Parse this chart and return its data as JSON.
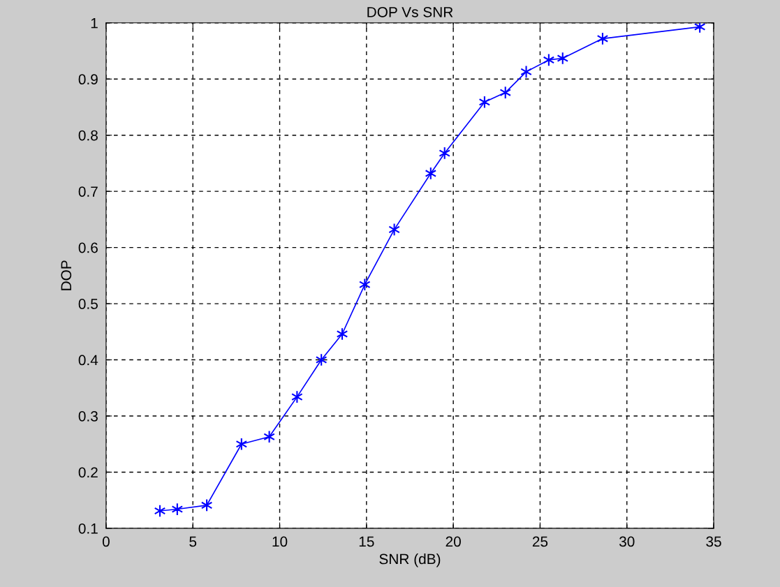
{
  "chart_data": {
    "type": "line",
    "title": "DOP Vs SNR",
    "xlabel": "SNR (dB)",
    "ylabel": "DOP",
    "x": [
      3.1,
      4.1,
      5.8,
      7.8,
      9.4,
      11.0,
      12.4,
      13.6,
      14.9,
      16.6,
      18.7,
      19.5,
      21.8,
      23.0,
      24.2,
      25.5,
      26.3,
      28.6,
      34.2
    ],
    "series": [
      {
        "color": "#0000ff",
        "values": [
          0.131,
          0.134,
          0.141,
          0.25,
          0.263,
          0.334,
          0.4,
          0.446,
          0.534,
          0.632,
          0.732,
          0.768,
          0.859,
          0.876,
          0.913,
          0.934,
          0.937,
          0.972,
          0.993
        ]
      }
    ],
    "xlim": [
      0,
      35
    ],
    "xticks": [
      0,
      5,
      10,
      15,
      20,
      25,
      30,
      35
    ],
    "ylim": [
      0.1,
      1
    ],
    "yticks": [
      0.1,
      0.2,
      0.3,
      0.4,
      0.5,
      0.6,
      0.7,
      0.8,
      0.9,
      1
    ],
    "grid": true,
    "marker": "cross",
    "line_style": "solid"
  }
}
